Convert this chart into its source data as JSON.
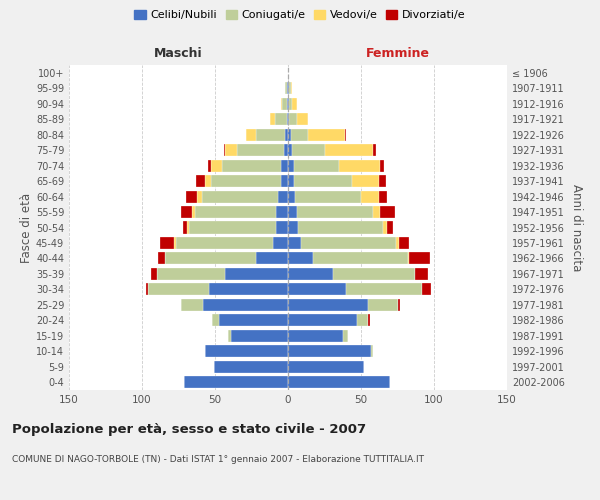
{
  "age_groups": [
    "0-4",
    "5-9",
    "10-14",
    "15-19",
    "20-24",
    "25-29",
    "30-34",
    "35-39",
    "40-44",
    "45-49",
    "50-54",
    "55-59",
    "60-64",
    "65-69",
    "70-74",
    "75-79",
    "80-84",
    "85-89",
    "90-94",
    "95-99",
    "100+"
  ],
  "birth_years": [
    "2002-2006",
    "1997-2001",
    "1992-1996",
    "1987-1991",
    "1982-1986",
    "1977-1981",
    "1972-1976",
    "1967-1971",
    "1962-1966",
    "1957-1961",
    "1952-1956",
    "1947-1951",
    "1942-1946",
    "1937-1941",
    "1932-1936",
    "1927-1931",
    "1922-1926",
    "1917-1921",
    "1912-1916",
    "1907-1911",
    "≤ 1906"
  ],
  "maschi": {
    "celibi": [
      71,
      51,
      57,
      39,
      47,
      58,
      54,
      43,
      22,
      10,
      8,
      8,
      7,
      5,
      5,
      3,
      2,
      1,
      1,
      1,
      0
    ],
    "coniugati": [
      0,
      0,
      0,
      2,
      5,
      15,
      42,
      47,
      62,
      67,
      60,
      56,
      52,
      48,
      40,
      32,
      20,
      8,
      3,
      1,
      0
    ],
    "vedovi": [
      0,
      0,
      0,
      0,
      0,
      0,
      0,
      0,
      0,
      1,
      1,
      2,
      3,
      4,
      8,
      8,
      7,
      3,
      1,
      0,
      0
    ],
    "divorziati": [
      0,
      0,
      0,
      0,
      0,
      0,
      1,
      4,
      5,
      10,
      3,
      7,
      8,
      6,
      2,
      1,
      0,
      0,
      0,
      0,
      0
    ]
  },
  "femmine": {
    "nubili": [
      70,
      52,
      57,
      38,
      47,
      55,
      40,
      31,
      17,
      9,
      7,
      6,
      5,
      4,
      4,
      3,
      2,
      1,
      1,
      1,
      0
    ],
    "coniugate": [
      0,
      0,
      1,
      3,
      8,
      20,
      52,
      56,
      65,
      65,
      58,
      52,
      45,
      40,
      31,
      22,
      12,
      5,
      2,
      1,
      0
    ],
    "vedove": [
      0,
      0,
      0,
      0,
      0,
      0,
      0,
      0,
      1,
      2,
      3,
      5,
      12,
      18,
      28,
      33,
      25,
      8,
      3,
      1,
      0
    ],
    "divorziate": [
      0,
      0,
      0,
      0,
      1,
      2,
      6,
      9,
      14,
      7,
      4,
      10,
      6,
      5,
      3,
      2,
      1,
      0,
      0,
      0,
      0
    ]
  },
  "colors": {
    "celibi": "#4472C4",
    "coniugati": "#BFCE9A",
    "vedovi": "#FFD966",
    "divorziati": "#C00000"
  },
  "xlim": 150,
  "title": "Popolazione per età, sesso e stato civile - 2007",
  "subtitle": "COMUNE DI NAGO-TORBOLE (TN) - Dati ISTAT 1° gennaio 2007 - Elaborazione TUTTITALIA.IT",
  "ylabel": "Fasce di età",
  "ylabel_right": "Anni di nascita",
  "legend_labels": [
    "Celibi/Nubili",
    "Coniugati/e",
    "Vedovi/e",
    "Divorziati/e"
  ],
  "maschi_label": "Maschi",
  "femmine_label": "Femmine",
  "bg_color": "#f0f0f0",
  "plot_bg_color": "#ffffff"
}
